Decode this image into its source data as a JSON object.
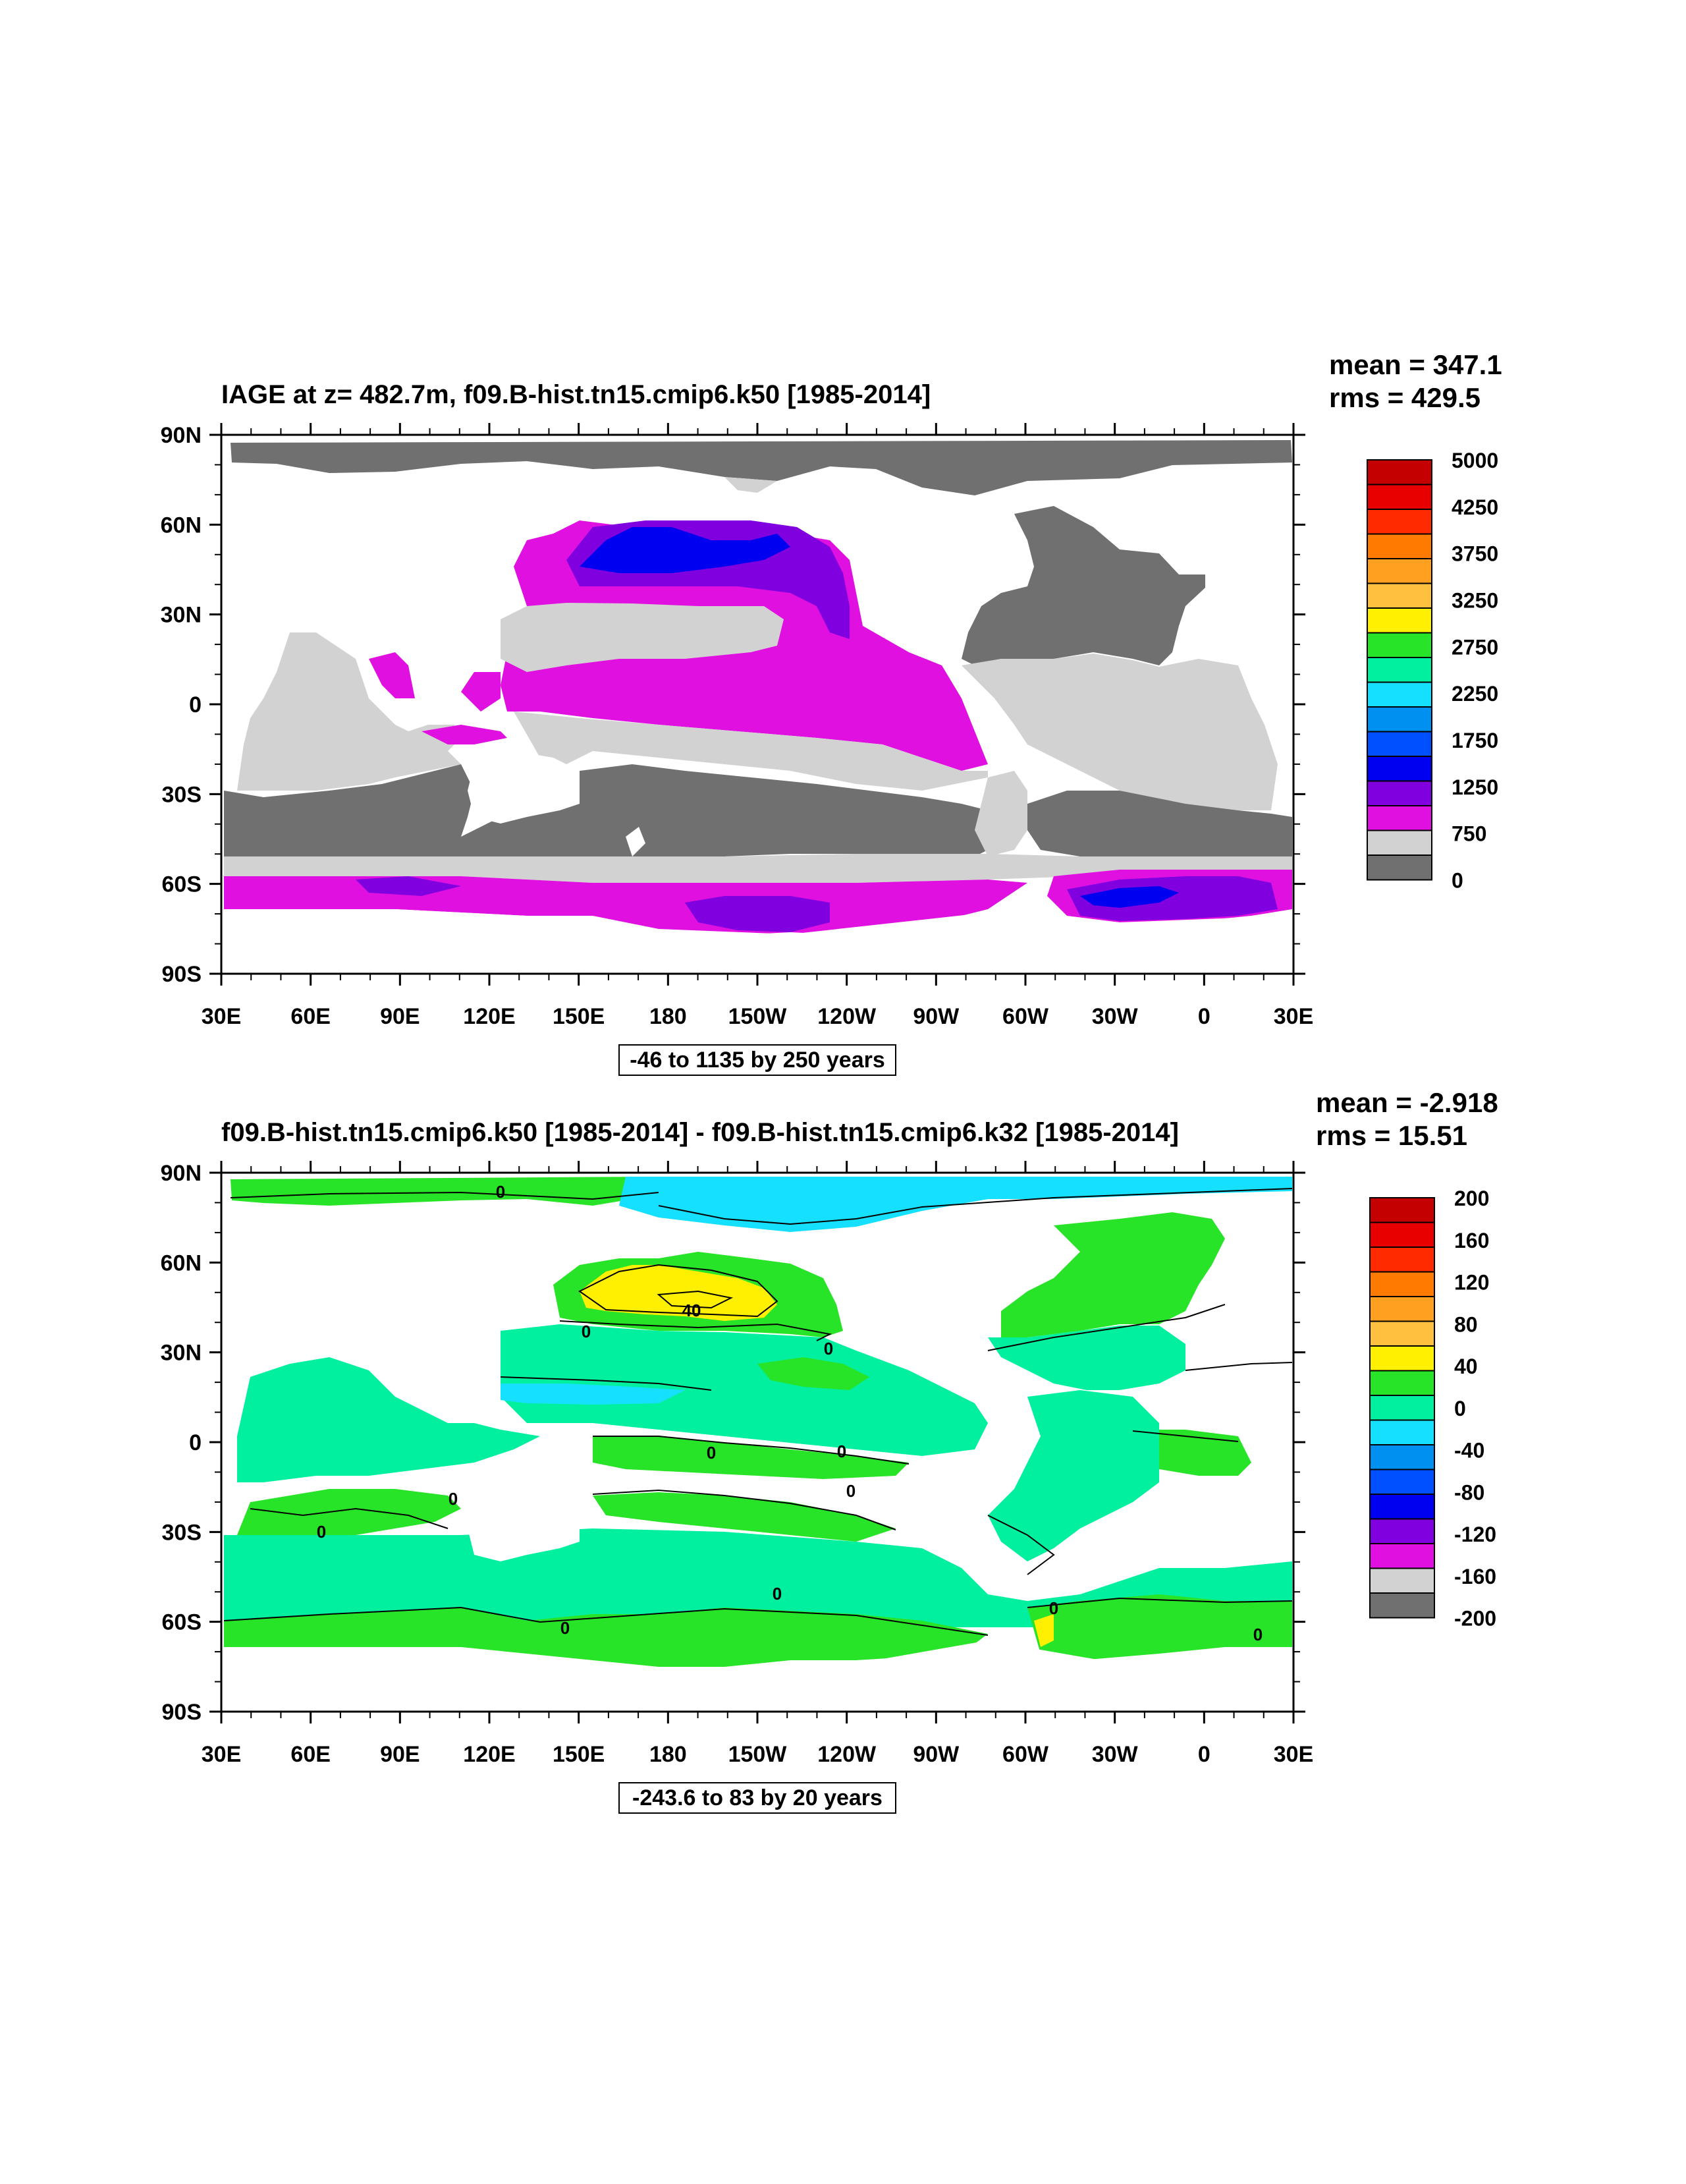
{
  "panels": [
    {
      "title": "IAGE at z= 482.7m, f09.B-hist.tn15.cmip6.k50 [1985-2014]",
      "mean": "mean = 347.1",
      "rms": "rms = 429.5",
      "range_label": "-46 to 1135 by 250 years",
      "colorbar": {
        "labels": [
          "5000",
          "4250",
          "3750",
          "3250",
          "2750",
          "2250",
          "1750",
          "1250",
          "750",
          "0"
        ],
        "label_slots": [
          0,
          2,
          3,
          4,
          5,
          6,
          7,
          8,
          9,
          11
        ],
        "colors": [
          "#c40000",
          "#e80000",
          "#ff2a00",
          "#ff7a00",
          "#ffa020",
          "#ffc040",
          "#ffef00",
          "#28e428",
          "#00f0a0",
          "#16e0ff",
          "#0090f0",
          "#0050ff",
          "#0000f0",
          "#8000e0",
          "#e010e0",
          "#d2d2d2",
          "#707070"
        ]
      }
    },
    {
      "title": "f09.B-hist.tn15.cmip6.k50 [1985-2014] - f09.B-hist.tn15.cmip6.k32 [1985-2014]",
      "mean": "mean = -2.918",
      "rms": "rms = 15.51",
      "range_label": "-243.6 to 83 by 20 years",
      "colorbar": {
        "labels": [
          "200",
          "160",
          "120",
          "80",
          "40",
          "0",
          "-40",
          "-80",
          "-120",
          "-160",
          "-200"
        ],
        "label_slots": [
          0,
          1,
          2,
          3,
          4,
          5,
          6,
          7,
          8,
          9,
          10
        ],
        "colors": [
          "#c40000",
          "#e80000",
          "#ff2a00",
          "#ff7a00",
          "#ffa020",
          "#ffc040",
          "#ffef00",
          "#28e428",
          "#00f0a0",
          "#16e0ff",
          "#0090f0",
          "#0050ff",
          "#0000f0",
          "#8000e0",
          "#e010e0",
          "#d2d2d2",
          "#707070"
        ]
      },
      "contour_labels": [
        "0",
        "0",
        "40",
        "0",
        "0",
        "0",
        "0",
        "0",
        "0",
        "0",
        "0",
        "0",
        "0"
      ]
    }
  ],
  "axes": {
    "lat_ticks": [
      "90N",
      "60N",
      "30N",
      "0",
      "30S",
      "60S",
      "90S"
    ],
    "lon_ticks": [
      "30E",
      "60E",
      "90E",
      "120E",
      "150E",
      "180",
      "150W",
      "120W",
      "90W",
      "60W",
      "30W",
      "0",
      "30E"
    ]
  },
  "colors": {
    "land": "#ffffff",
    "dark_gray": "#707070",
    "light_gray": "#d2d2d2",
    "magenta": "#e010e0",
    "purple": "#8000e0",
    "blue": "#0000f0",
    "aqua_green": "#00f0a0",
    "green": "#28e428",
    "cyan": "#16e0ff",
    "yellow": "#ffef00"
  }
}
